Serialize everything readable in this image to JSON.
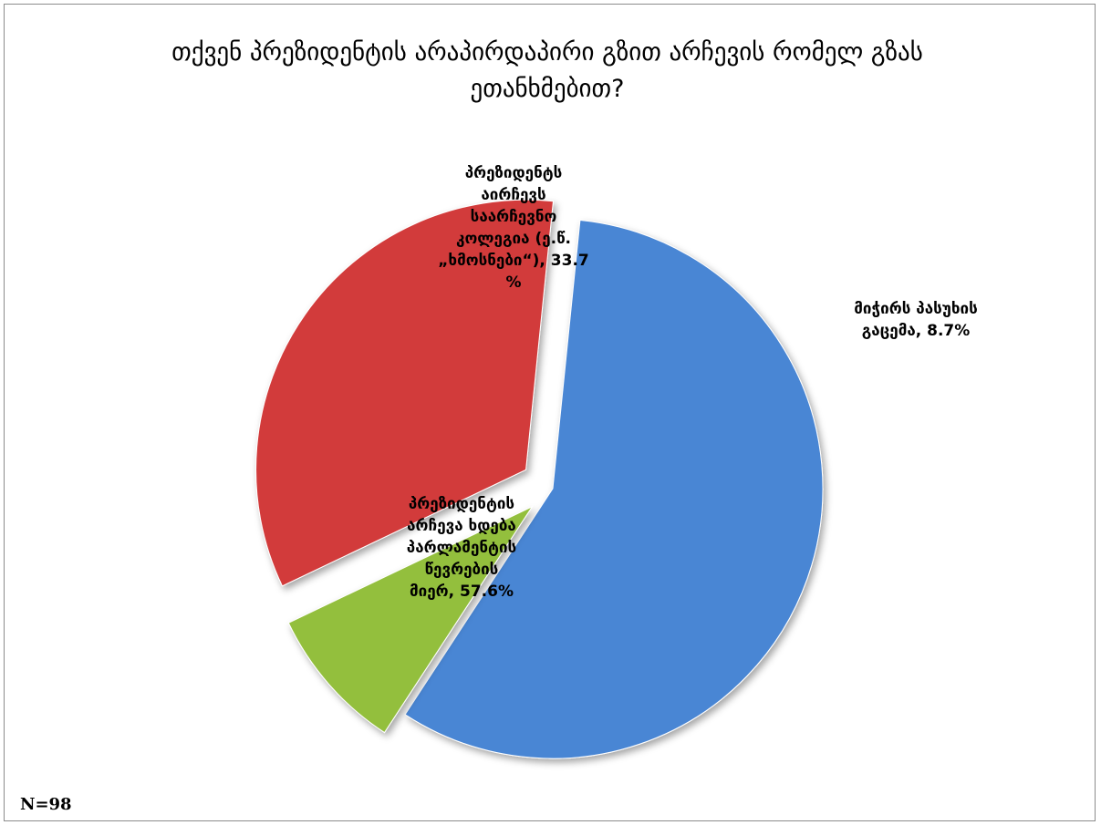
{
  "chart_data": {
    "type": "pie",
    "title": "თქვენ პრეზიდენტის არაპირდაპირი გზით არჩევის რომელ გზას ეთანხმებით?",
    "slices": [
      {
        "label_lines": [
          "პრეზიდენტის",
          "არჩევა ხდება",
          "პარლამენტის",
          "წევრების",
          "მიერ, 57.6%"
        ],
        "value": 57.6,
        "color": "#4a86d4"
      },
      {
        "label_lines": [
          "მიჭირს პასუხის",
          "გაცემა, 8.7%"
        ],
        "value": 8.7,
        "color": "#93bf3e"
      },
      {
        "label_lines": [
          "პრეზიდენტს",
          "აირჩევს",
          "საარჩევნო",
          "კოლეგია (ე.წ.",
          "„ხმოსნები“), 33.7",
          "%"
        ],
        "value": 33.7,
        "color": "#d23b3b"
      }
    ],
    "legend": "none"
  },
  "footnote": "N=98"
}
